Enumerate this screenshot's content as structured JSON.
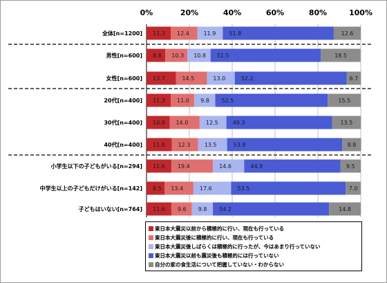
{
  "chart_data": {
    "type": "bar",
    "orientation": "horizontal",
    "stacked": true,
    "percent_axis": true,
    "xlim": [
      0,
      100
    ],
    "x_ticks": [
      "0%",
      "20%",
      "40%",
      "60%",
      "80%",
      "100%"
    ],
    "categories": [
      "全体[n=1200]",
      "男性[n=600]",
      "女性[n=600]",
      "20代[n=400]",
      "30代[n=400]",
      "40代[n=400]",
      "小学生以下の子どもがいる[n=294]",
      "中学生以上の子どもだけがいる[n=142]",
      "子どもはいない[n=764]"
    ],
    "series": [
      {
        "name": "東日本大震災以前から積極的に行い、現在も行っている",
        "color": "#c0282d",
        "values": [
          11.3,
          8.8,
          13.7,
          11.3,
          10.8,
          11.8,
          11.6,
          8.5,
          11.6
        ]
      },
      {
        "name": "東日本大震災後に積極的に行い、現在も行っている",
        "color": "#e06f6f",
        "values": [
          12.4,
          10.3,
          14.5,
          11.0,
          14.0,
          12.3,
          19.4,
          13.4,
          9.6
        ]
      },
      {
        "name": "東日本大震災後しばらくは積極的に行ったが、今はあまり行っていない",
        "color": "#a9b6ef",
        "values": [
          11.9,
          10.8,
          13.0,
          9.8,
          12.5,
          13.5,
          14.6,
          17.6,
          9.8
        ]
      },
      {
        "name": "東日本大震災以前も震災後も積極的には行っていない",
        "color": "#4a5bd3",
        "values": [
          51.8,
          51.5,
          52.2,
          52.5,
          49.3,
          53.8,
          44.9,
          53.5,
          54.2
        ]
      },
      {
        "name": "自分の家の食生活について把握していない・わからない",
        "color": "#8c8c8c",
        "values": [
          12.6,
          18.5,
          6.7,
          15.5,
          13.5,
          8.8,
          9.5,
          7.0,
          14.8
        ]
      }
    ],
    "legend_position": "bottom"
  }
}
